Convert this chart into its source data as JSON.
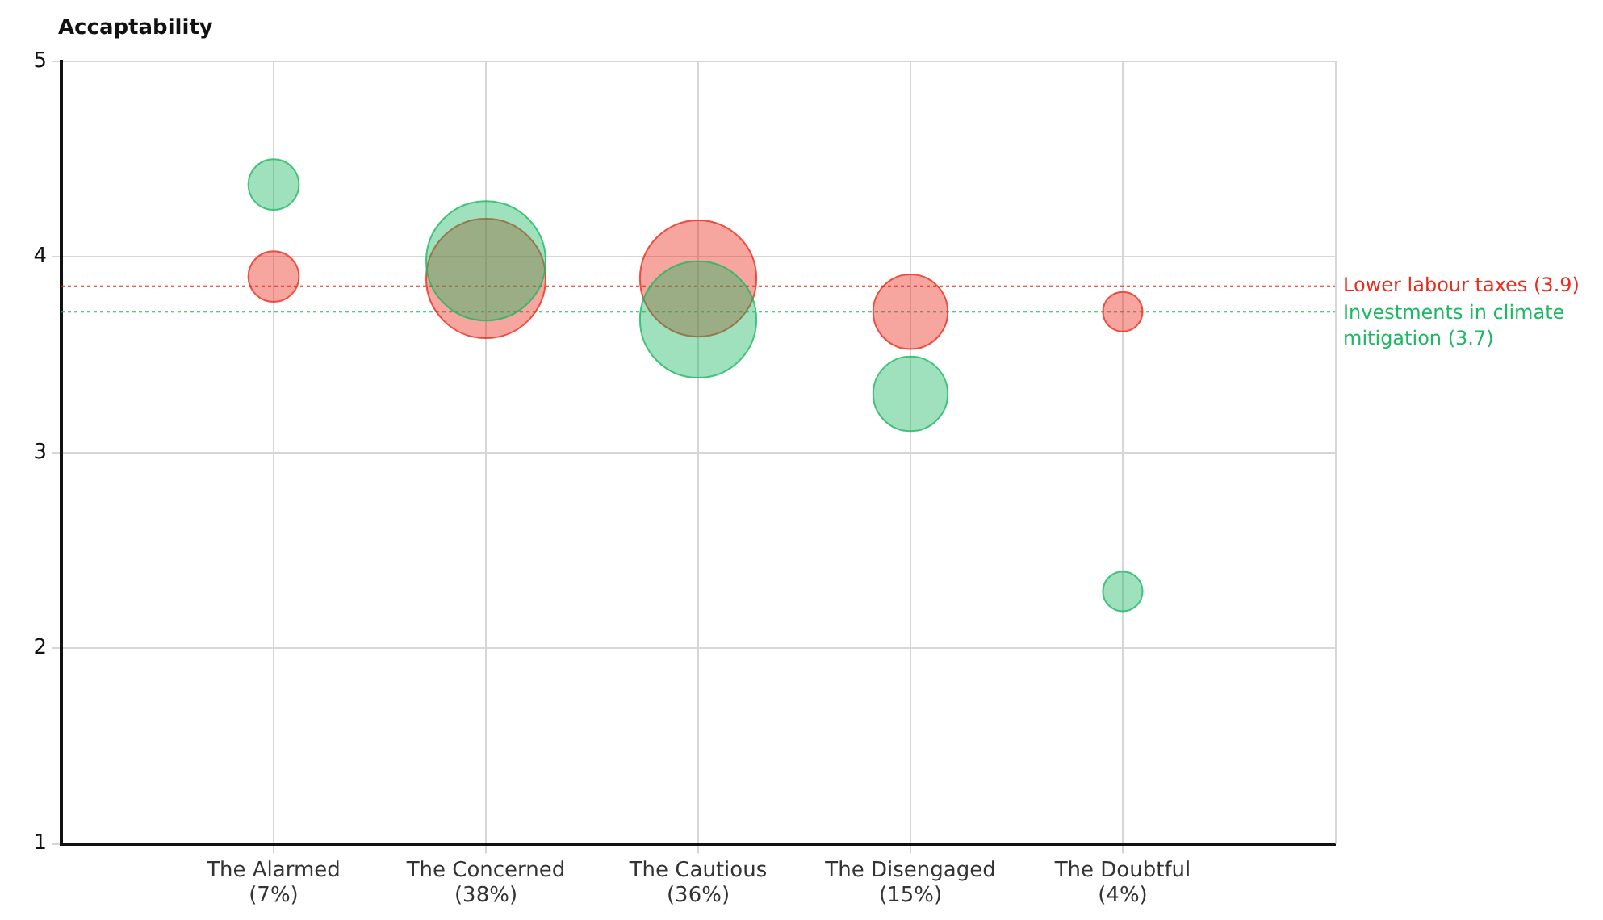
{
  "chart_data": {
    "type": "bubble",
    "ylabel": "Accaptability",
    "categories": [
      "The Alarmed\n(7%)",
      "The Concerned\n(38%)",
      "The Cautious\n(36%)",
      "The Disengaged\n(15%)",
      "The Doubtful\n(4%)"
    ],
    "series": [
      {
        "color": "#1cb862",
        "values": [
          4.37,
          3.98,
          3.68,
          3.3,
          2.29
        ],
        "sizes": [
          0.18,
          1,
          0.95,
          0.39,
          0.11
        ]
      },
      {
        "color": "#ec2a1a",
        "values": [
          3.9,
          3.89,
          3.89,
          3.72,
          3.72
        ],
        "sizes": [
          0.18,
          1,
          0.95,
          0.39,
          0.11
        ]
      }
    ],
    "ylim": [
      1,
      5
    ],
    "yticks": [
      1,
      2,
      3,
      4,
      5
    ],
    "grid": true,
    "legend": false,
    "marker": "circle",
    "ref_lines": [
      {
        "axis": "y",
        "value": 3.85,
        "label": "Lower labour taxes (3.9)",
        "color": "#ec2a1a",
        "line_style": "dotted"
      },
      {
        "axis": "y",
        "value": 3.72,
        "label": "Investments in climate mitigation (3.7)",
        "color": "#1cb862",
        "line_style": "dotted"
      }
    ]
  }
}
